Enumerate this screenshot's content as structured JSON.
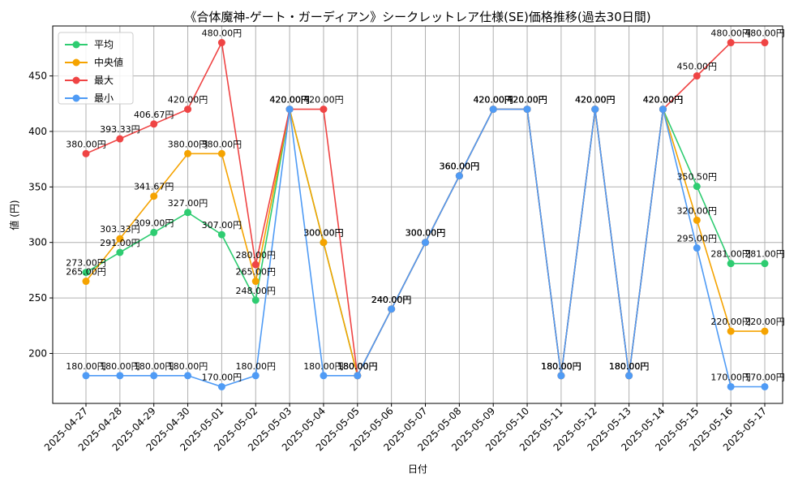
{
  "chart_data": {
    "type": "line",
    "title": "《合体魔神-ゲート・ガーディアン》シークレットレア仕様(SE)価格推移(過去30日間)",
    "xlabel": "日付",
    "ylabel": "値 (円)",
    "ylim": [
      155,
      495
    ],
    "yticks": [
      200,
      250,
      300,
      350,
      400,
      450
    ],
    "grid": true,
    "legend_position": "top-left",
    "label_suffix": "円",
    "categories": [
      "2025-04-27",
      "2025-04-28",
      "2025-04-29",
      "2025-04-30",
      "2025-05-01",
      "2025-05-02",
      "2025-05-03",
      "2025-05-04",
      "2025-05-05",
      "2025-05-06",
      "2025-05-07",
      "2025-05-08",
      "2025-05-09",
      "2025-05-10",
      "2025-05-11",
      "2025-05-12",
      "2025-05-13",
      "2025-05-14",
      "2025-05-15",
      "2025-05-16",
      "2025-05-17"
    ],
    "series": [
      {
        "name": "平均",
        "color": "#2ecc71",
        "values": [
          273.0,
          291.0,
          309.0,
          327.0,
          307.0,
          248.0,
          420.0,
          300.0,
          180.0,
          240.0,
          300.0,
          360.0,
          420.0,
          420.0,
          180.0,
          420.0,
          180.0,
          420.0,
          350.5,
          281.0,
          281.0
        ]
      },
      {
        "name": "中央値",
        "color": "#f5a300",
        "values": [
          265.0,
          303.33,
          341.67,
          380.0,
          380.0,
          265.0,
          420.0,
          300.0,
          180.0,
          240.0,
          300.0,
          360.0,
          420.0,
          420.0,
          180.0,
          420.0,
          180.0,
          420.0,
          320.0,
          220.0,
          220.0
        ]
      },
      {
        "name": "最大",
        "color": "#ef4444",
        "values": [
          380.0,
          393.33,
          406.67,
          420.0,
          480.0,
          280.0,
          420.0,
          420.0,
          180.0,
          240.0,
          300.0,
          360.0,
          420.0,
          420.0,
          180.0,
          420.0,
          180.0,
          420.0,
          450.0,
          480.0,
          480.0
        ]
      },
      {
        "name": "最小",
        "color": "#4f9bf5",
        "values": [
          180.0,
          180.0,
          180.0,
          180.0,
          170.0,
          180.0,
          420.0,
          180.0,
          180.0,
          240.0,
          300.0,
          360.0,
          420.0,
          420.0,
          180.0,
          420.0,
          180.0,
          420.0,
          295.0,
          170.0,
          170.0
        ]
      }
    ]
  }
}
